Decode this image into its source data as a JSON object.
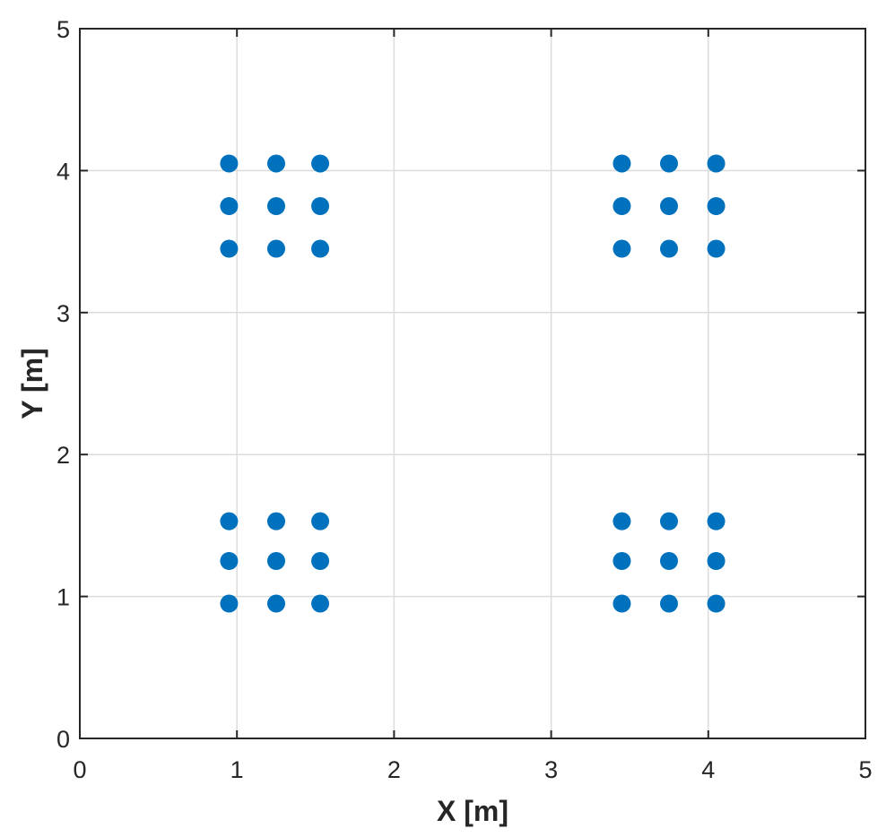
{
  "chart_data": {
    "type": "scatter",
    "title": "",
    "xlabel": "X [m]",
    "ylabel": "Y [m]",
    "xlim": [
      0,
      5
    ],
    "ylim": [
      0,
      5
    ],
    "xticks": [
      "0",
      "1",
      "2",
      "3",
      "4",
      "5"
    ],
    "yticks": [
      "0",
      "1",
      "2",
      "3",
      "4",
      "5"
    ],
    "grid": true,
    "box": true,
    "colors": {
      "marker": "#0072BD",
      "axis": "#262626",
      "grid": "#dcdcdc"
    },
    "series": [
      {
        "points": [
          [
            0.95,
            0.95
          ],
          [
            1.25,
            0.95
          ],
          [
            1.53,
            0.95
          ],
          [
            0.95,
            1.25
          ],
          [
            1.25,
            1.25
          ],
          [
            1.53,
            1.25
          ],
          [
            0.95,
            1.53
          ],
          [
            1.25,
            1.53
          ],
          [
            1.53,
            1.53
          ],
          [
            3.45,
            0.95
          ],
          [
            3.75,
            0.95
          ],
          [
            4.05,
            0.95
          ],
          [
            3.45,
            1.25
          ],
          [
            3.75,
            1.25
          ],
          [
            4.05,
            1.25
          ],
          [
            3.45,
            1.53
          ],
          [
            3.75,
            1.53
          ],
          [
            4.05,
            1.53
          ],
          [
            0.95,
            3.45
          ],
          [
            1.25,
            3.45
          ],
          [
            1.53,
            3.45
          ],
          [
            0.95,
            3.75
          ],
          [
            1.25,
            3.75
          ],
          [
            1.53,
            3.75
          ],
          [
            0.95,
            4.05
          ],
          [
            1.25,
            4.05
          ],
          [
            1.53,
            4.05
          ],
          [
            3.45,
            3.45
          ],
          [
            3.75,
            3.45
          ],
          [
            4.05,
            3.45
          ],
          [
            3.45,
            3.75
          ],
          [
            3.75,
            3.75
          ],
          [
            4.05,
            3.75
          ],
          [
            3.45,
            4.05
          ],
          [
            3.75,
            4.05
          ],
          [
            4.05,
            4.05
          ]
        ]
      }
    ]
  }
}
